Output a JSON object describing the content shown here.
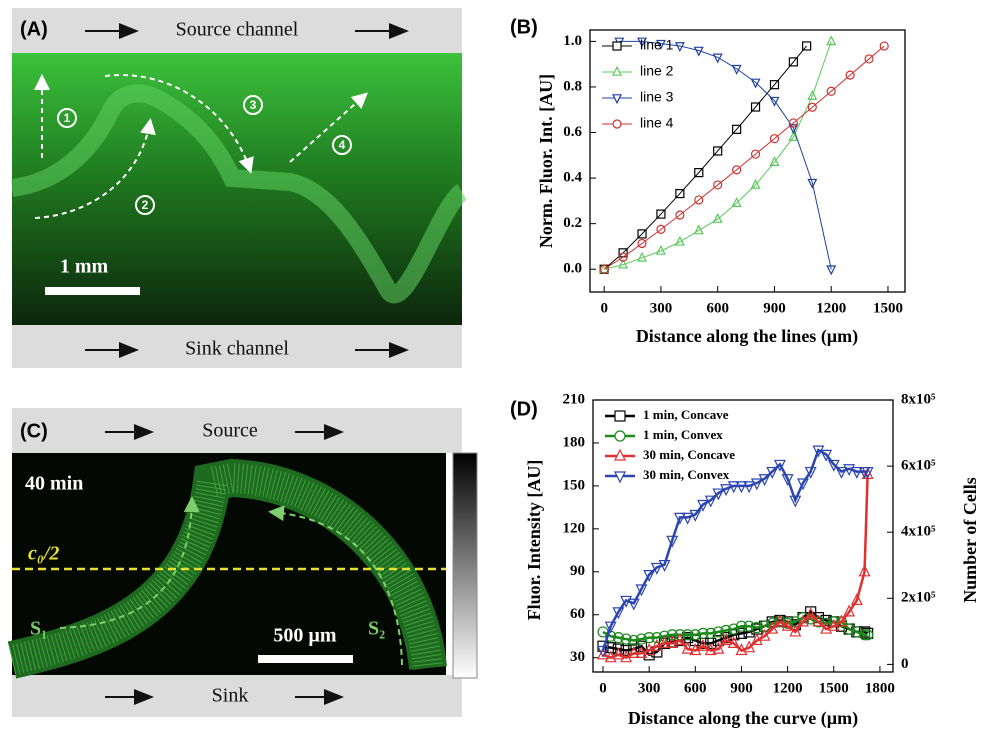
{
  "panel_a": {
    "label": "(A)",
    "source": "Source channel",
    "sink": "Sink channel",
    "scale_bar": "1 mm",
    "markers": [
      "1",
      "2",
      "3",
      "4"
    ]
  },
  "panel_c": {
    "label": "(C)",
    "source": "Source",
    "sink": "Sink",
    "time": "40 min",
    "threshold": "c₀/2",
    "curves": [
      "S₁",
      "S₂"
    ],
    "scale_bar": "500 µm"
  },
  "chart_data": [
    {
      "type": "line",
      "panel_label": "(B)",
      "x_label": "Distance along the lines (µm)",
      "y_label": "Norm. Fluor. Int. [AU]",
      "xlim": [
        -75,
        1590
      ],
      "ylim": [
        -0.1,
        1.05
      ],
      "xticks": [
        0,
        300,
        600,
        900,
        1200,
        1500
      ],
      "yticks": [
        {
          "value": 0,
          "label": "0.0"
        },
        0.2,
        0.4,
        0.6,
        0.8,
        {
          "value": 1,
          "label": "1.0"
        }
      ],
      "legend": "upper left",
      "line_width": 1,
      "marker_fill": "none",
      "series": [
        {
          "name": "line 1",
          "color": "#000000",
          "marker": "square",
          "x": [
            0,
            100,
            200,
            300,
            400,
            500,
            600,
            700,
            800,
            900,
            1000,
            1070
          ],
          "values": [
            0,
            0.072,
            0.155,
            0.242,
            0.332,
            0.424,
            0.519,
            0.614,
            0.712,
            0.81,
            0.91,
            0.98
          ]
        },
        {
          "name": "line 2",
          "color": "#5cc85c",
          "marker": "triangle-up",
          "x": [
            0,
            100,
            200,
            300,
            400,
            500,
            600,
            700,
            800,
            900,
            1000,
            1100,
            1200
          ],
          "values": [
            0,
            0.02,
            0.05,
            0.08,
            0.12,
            0.17,
            0.22,
            0.29,
            0.37,
            0.47,
            0.58,
            0.76,
            1.0
          ]
        },
        {
          "name": "line 3",
          "color": "#2040a0",
          "marker": "triangle-down",
          "x": [
            80,
            200,
            300,
            400,
            500,
            600,
            700,
            800,
            900,
            1000,
            1100,
            1200
          ],
          "values": [
            1.0,
            1.0,
            0.99,
            0.98,
            0.96,
            0.93,
            0.88,
            0.82,
            0.74,
            0.62,
            0.38,
            0.0
          ]
        },
        {
          "name": "line 4",
          "color": "#d03030",
          "marker": "circle",
          "x": [
            0,
            100,
            200,
            300,
            400,
            500,
            600,
            700,
            800,
            900,
            1000,
            1100,
            1200,
            1300,
            1400,
            1480
          ],
          "values": [
            0,
            0.053,
            0.113,
            0.175,
            0.238,
            0.304,
            0.37,
            0.436,
            0.505,
            0.573,
            0.642,
            0.711,
            0.781,
            0.852,
            0.923,
            0.98
          ]
        }
      ]
    },
    {
      "type": "line",
      "panel_label": "(D)",
      "x_label": "Distance along the curve (µm)",
      "y_label": "Fluor. Intensity [AU]",
      "y2_label": "Number of Cells",
      "xlim": [
        -65,
        1885
      ],
      "ylim": [
        20,
        210
      ],
      "y2lim": [
        -23000,
        800000
      ],
      "xticks": [
        0,
        300,
        600,
        900,
        1200,
        1500,
        1800
      ],
      "yticks": [
        30,
        60,
        90,
        120,
        150,
        180,
        210
      ],
      "y2ticks": [
        0,
        {
          "value": 200000,
          "label": "2x10⁵"
        },
        {
          "value": 400000,
          "label": "4x10⁵"
        },
        {
          "value": 600000,
          "label": "6x10⁵"
        },
        {
          "value": 800000,
          "label": "8x10⁵"
        }
      ],
      "legend": "upper left",
      "line_width": 2.5,
      "marker_fill": "none",
      "x": [
        0,
        50,
        100,
        150,
        200,
        250,
        300,
        350,
        400,
        450,
        500,
        550,
        600,
        650,
        700,
        750,
        800,
        850,
        900,
        950,
        1000,
        1050,
        1100,
        1150,
        1200,
        1250,
        1300,
        1350,
        1400,
        1450,
        1500,
        1550,
        1600,
        1650,
        1700,
        1720
      ],
      "series": [
        {
          "name": "1 min, Concave",
          "color": "#000000",
          "marker": "square",
          "values": [
            38,
            37,
            36,
            35,
            36,
            38,
            32,
            34,
            40,
            41,
            42,
            44,
            42,
            40,
            40,
            42,
            44,
            46,
            47,
            48,
            50,
            52,
            55,
            56,
            55,
            53,
            58,
            62,
            58,
            56,
            55,
            52,
            50,
            48,
            48,
            47
          ]
        },
        {
          "name": "1 min, Convex",
          "color": "#1a8a1a",
          "marker": "circle",
          "values": [
            48,
            45,
            44,
            43,
            42,
            43,
            44,
            44,
            45,
            46,
            46,
            46,
            46,
            47,
            47,
            48,
            49,
            50,
            52,
            52,
            51,
            52,
            54,
            55,
            54,
            55,
            58,
            57,
            55,
            54,
            55,
            55,
            50,
            48,
            46,
            46
          ]
        },
        {
          "name": "30 min, Concave",
          "color": "#e03030",
          "marker": "triangle-up",
          "values": [
            32,
            30,
            32,
            30,
            33,
            33,
            35,
            38,
            40,
            40,
            42,
            36,
            35,
            38,
            35,
            36,
            42,
            40,
            35,
            37,
            42,
            45,
            50,
            55,
            52,
            48,
            55,
            60,
            55,
            50,
            52,
            55,
            62,
            70,
            90,
            158
          ]
        },
        {
          "name": "30 min, Convex",
          "color": "#2a44b0",
          "marker": "triangle-down",
          "values": [
            35,
            52,
            62,
            70,
            68,
            78,
            88,
            93,
            95,
            112,
            128,
            128,
            130,
            137,
            140,
            145,
            148,
            150,
            150,
            150,
            152,
            155,
            160,
            165,
            155,
            140,
            152,
            160,
            175,
            172,
            165,
            160,
            162,
            160,
            160,
            160
          ]
        }
      ]
    }
  ]
}
